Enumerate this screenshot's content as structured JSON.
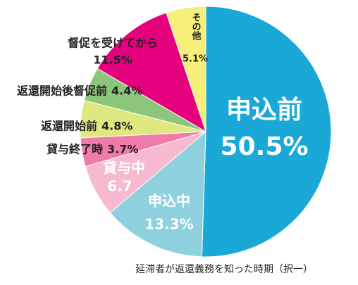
{
  "chart_data": {
    "type": "pie",
    "caption": "延滞者が返還義務を知った時期（択一）",
    "categories": [
      "申込前",
      "申込中",
      "貸与中",
      "貸与終了時",
      "返還開始前",
      "返還開始後督促前",
      "督促を受けてから",
      "その他"
    ],
    "values": [
      50.5,
      13.3,
      6.7,
      3.7,
      4.8,
      4.4,
      11.5,
      5.1
    ],
    "value_labels": [
      "50.5%",
      "13.3%",
      "6.7",
      "3.7%",
      "4.8%",
      "4.4%",
      "11.5%",
      "5.1%"
    ],
    "colors": [
      "#1aa9d6",
      "#8fd0df",
      "#f6b9cf",
      "#ee7ba8",
      "#dfe77f",
      "#8cc67a",
      "#e5007e",
      "#f6ef7a"
    ]
  }
}
